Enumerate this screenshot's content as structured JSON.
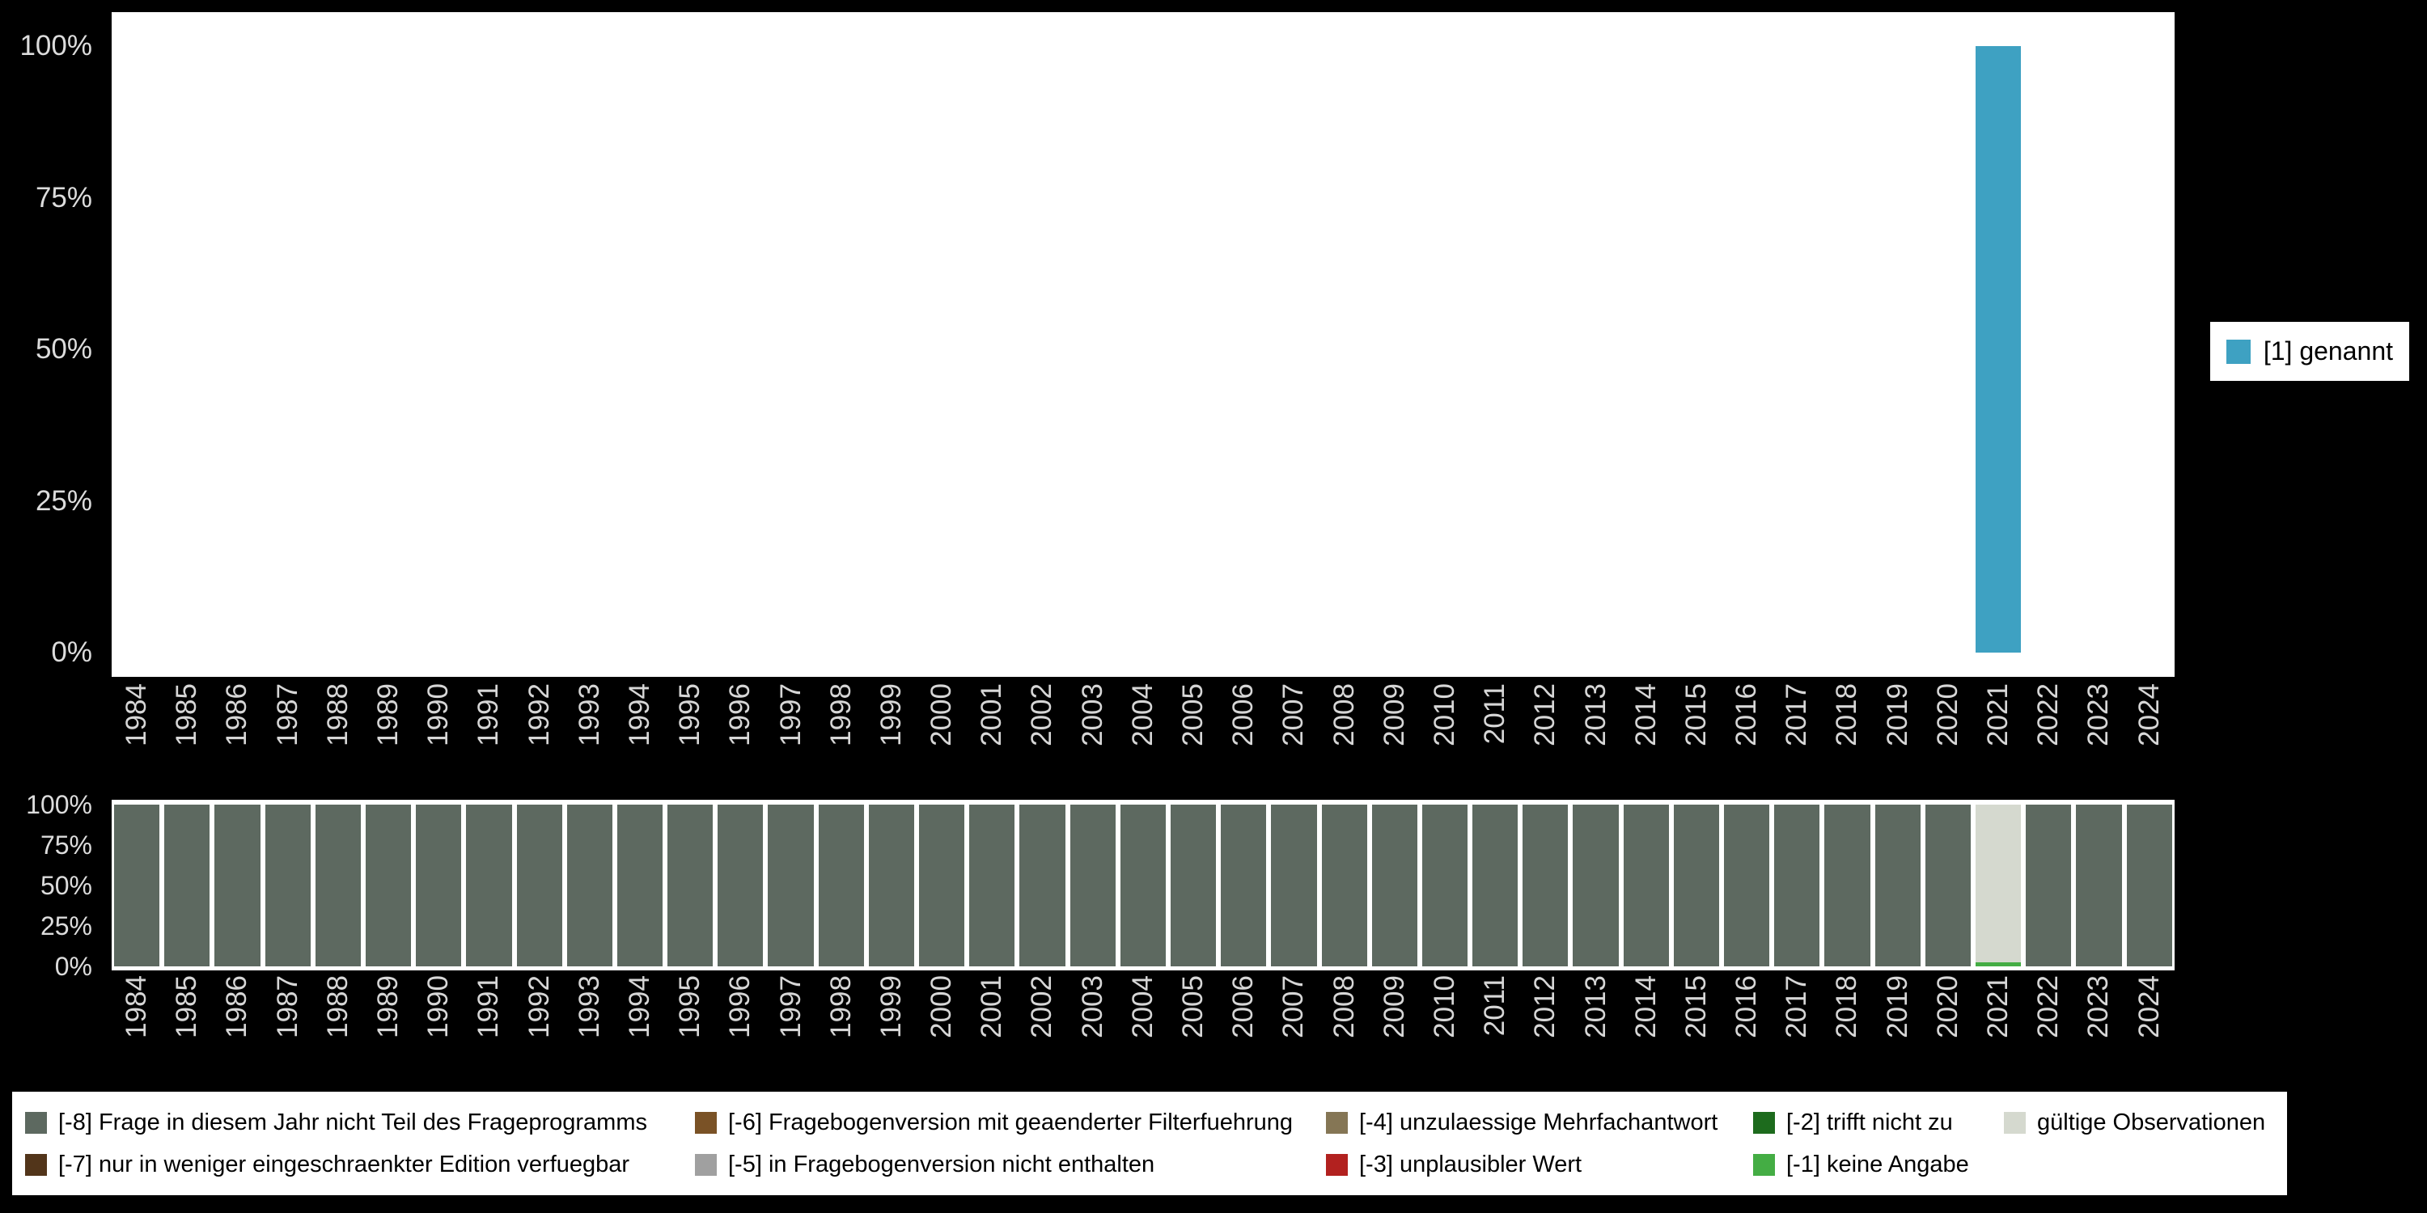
{
  "background": "#000000",
  "legend_top": {
    "label": "[1] genannt",
    "color": "#3ea1c2"
  },
  "legend_bottom": {
    "columns": [
      [
        {
          "label": "[-8] Frage in diesem Jahr nicht Teil des Frageprogramms",
          "color": "#5d6960"
        },
        {
          "label": "[-7] nur in weniger eingeschraenkter Edition verfuegbar",
          "color": "#52351a"
        }
      ],
      [
        {
          "label": "[-6] Fragebogenversion mit geaenderter Filterfuehrung",
          "color": "#7a5226"
        },
        {
          "label": "[-5] in Fragebogenversion nicht enthalten",
          "color": "#a0a0a0"
        }
      ],
      [
        {
          "label": "[-4] unzulaessige Mehrfachantwort",
          "color": "#857655"
        },
        {
          "label": "[-3] unplausibler Wert",
          "color": "#b2211f"
        }
      ],
      [
        {
          "label": "[-2] trifft nicht zu",
          "color": "#1d6b1d"
        },
        {
          "label": "[-1] keine Angabe",
          "color": "#44ad44"
        }
      ],
      [
        {
          "label": "gültige Observationen",
          "color": "#d5d9cf"
        }
      ]
    ]
  },
  "chart_data": [
    {
      "type": "bar",
      "title": "",
      "xlabel": "",
      "ylabel": "",
      "ylim": [
        0,
        100
      ],
      "y_ticks": [
        "100%",
        "75%",
        "50%",
        "25%",
        "0%"
      ],
      "x": [
        "1984",
        "1985",
        "1986",
        "1987",
        "1988",
        "1989",
        "1990",
        "1991",
        "1992",
        "1993",
        "1994",
        "1995",
        "1996",
        "1997",
        "1998",
        "1999",
        "2000",
        "2001",
        "2002",
        "2003",
        "2004",
        "2005",
        "2006",
        "2007",
        "2008",
        "2009",
        "2010",
        "2011",
        "2012",
        "2013",
        "2014",
        "2015",
        "2016",
        "2017",
        "2018",
        "2019",
        "2020",
        "2021",
        "2022",
        "2023",
        "2024"
      ],
      "series": [
        {
          "name": "[1] genannt",
          "color": "#3ea1c2",
          "values": [
            0,
            0,
            0,
            0,
            0,
            0,
            0,
            0,
            0,
            0,
            0,
            0,
            0,
            0,
            0,
            0,
            0,
            0,
            0,
            0,
            0,
            0,
            0,
            0,
            0,
            0,
            0,
            0,
            0,
            0,
            0,
            0,
            0,
            0,
            0,
            0,
            0,
            100,
            0,
            0,
            0
          ]
        }
      ],
      "legend_position": "right"
    },
    {
      "type": "stacked-bar-percent",
      "title": "",
      "xlabel": "",
      "ylabel": "",
      "ylim": [
        0,
        100
      ],
      "y_ticks": [
        "100%",
        "75%",
        "50%",
        "25%",
        "0%"
      ],
      "x": [
        "1984",
        "1985",
        "1986",
        "1987",
        "1988",
        "1989",
        "1990",
        "1991",
        "1992",
        "1993",
        "1994",
        "1995",
        "1996",
        "1997",
        "1998",
        "1999",
        "2000",
        "2001",
        "2002",
        "2003",
        "2004",
        "2005",
        "2006",
        "2007",
        "2008",
        "2009",
        "2010",
        "2011",
        "2012",
        "2013",
        "2014",
        "2015",
        "2016",
        "2017",
        "2018",
        "2019",
        "2020",
        "2021",
        "2022",
        "2023",
        "2024"
      ],
      "default_segments": [
        {
          "label": "[-8] Frage in diesem Jahr nicht Teil des Frageprogramms",
          "color": "#5d6960",
          "value": 100
        }
      ],
      "overrides": {
        "2021": [
          {
            "label": "[-1] keine Angabe",
            "color": "#44ad44",
            "value": 2.5
          },
          {
            "label": "gültige Observationen",
            "color": "#d5d9cf",
            "value": 97.5
          }
        ]
      },
      "legend_position": "bottom"
    }
  ]
}
